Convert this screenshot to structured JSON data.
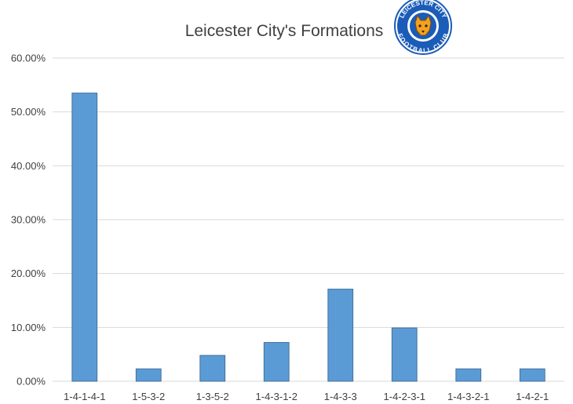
{
  "chart_data": {
    "type": "bar",
    "title": "Leicester City's Formations",
    "xlabel": "",
    "ylabel": "",
    "categories": [
      "1-4-1-4-1",
      "1-5-3-2",
      "1-3-5-2",
      "1-4-3-1-2",
      "1-4-3-3",
      "1-4-2-3-1",
      "1-4-3-2-1",
      "1-4-2-1"
    ],
    "values": [
      53.5,
      2.3,
      4.8,
      7.2,
      17.1,
      9.9,
      2.3,
      2.3
    ],
    "ylim": [
      0,
      60
    ],
    "yticks": [
      0,
      10,
      20,
      30,
      40,
      50,
      60
    ],
    "ytick_labels": [
      "0.00%",
      "10.00%",
      "20.00%",
      "30.00%",
      "40.00%",
      "50.00%",
      "60.00%"
    ],
    "grid": true,
    "legend": "none",
    "bar_color": "#5b9bd5"
  },
  "logo": {
    "name": "leicester-city-crest",
    "top_text": "LEICESTER CITY",
    "bottom_text": "FOOTBALL CLUB",
    "color": "#1a5cb8"
  }
}
